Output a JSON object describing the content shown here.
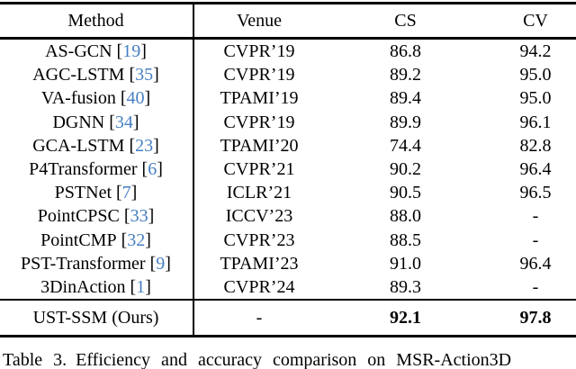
{
  "colors": {
    "background": "#ffffff",
    "text": "#000000",
    "citation_blue": "#467fc2",
    "rule": "#000000"
  },
  "table": {
    "columns": [
      "Method",
      "Venue",
      "CS",
      "CV"
    ],
    "rows": [
      {
        "method": "AS-GCN",
        "cite": "19",
        "venue": "CVPR’19",
        "cs": "86.8",
        "cv": "94.2"
      },
      {
        "method": "AGC-LSTM",
        "cite": "35",
        "venue": "CVPR’19",
        "cs": "89.2",
        "cv": "95.0"
      },
      {
        "method": "VA-fusion",
        "cite": "40",
        "venue": "TPAMI’19",
        "cs": "89.4",
        "cv": "95.0"
      },
      {
        "method": "DGNN",
        "cite": "34",
        "venue": "CVPR’19",
        "cs": "89.9",
        "cv": "96.1"
      },
      {
        "method": "GCA-LSTM",
        "cite": "23",
        "venue": "TPAMI’20",
        "cs": "74.4",
        "cv": "82.8"
      },
      {
        "method": "P4Transformer",
        "cite": "6",
        "venue": "CVPR’21",
        "cs": "90.2",
        "cv": "96.4"
      },
      {
        "method": "PSTNet",
        "cite": "7",
        "venue": "ICLR’21",
        "cs": "90.5",
        "cv": "96.5"
      },
      {
        "method": "PointCPSC",
        "cite": "33",
        "venue": "ICCV’23",
        "cs": "88.0",
        "cv": "-"
      },
      {
        "method": "PointCMP",
        "cite": "32",
        "venue": "CVPR’23",
        "cs": "88.5",
        "cv": "-"
      },
      {
        "method": "PST-Transformer",
        "cite": "9",
        "venue": "TPAMI’23",
        "cs": "91.0",
        "cv": "96.4"
      },
      {
        "method": "3DinAction",
        "cite": "1",
        "venue": "CVPR’24",
        "cs": "89.3",
        "cv": "-"
      }
    ],
    "highlight_row": {
      "method": "UST-SSM (Ours)",
      "venue": "-",
      "cs": "92.1",
      "cv": "97.8",
      "values_bold": true
    }
  },
  "caption": {
    "label": "Table 3.",
    "text": "Efficiency and accuracy comparison on MSR-Action3D"
  }
}
